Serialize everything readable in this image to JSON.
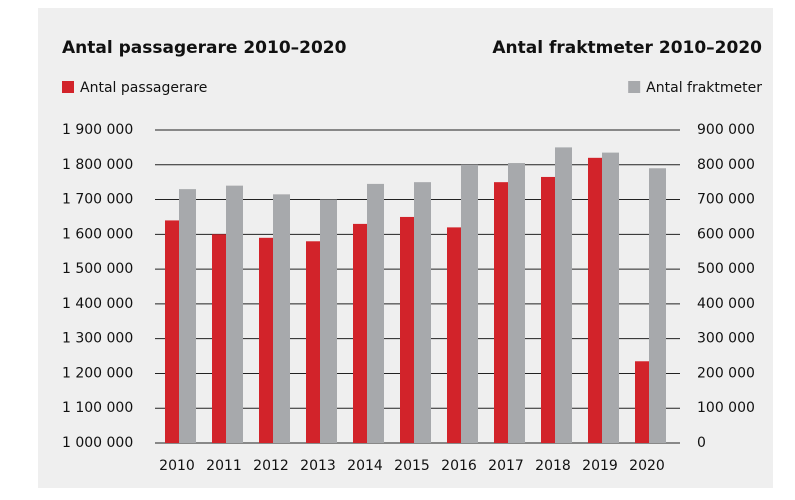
{
  "chart_data": {
    "type": "bar",
    "titles": [
      "Antal passagerare 2010–2020",
      "Antal fraktmeter 2010–2020"
    ],
    "categories": [
      "2010",
      "2011",
      "2012",
      "2013",
      "2014",
      "2015",
      "2016",
      "2017",
      "2018",
      "2019",
      "2020"
    ],
    "series": [
      {
        "name": "Antal passagerare",
        "color": "#d2232a",
        "axis": "y",
        "values": [
          1640000,
          1600000,
          1590000,
          1580000,
          1630000,
          1650000,
          1620000,
          1750000,
          1765000,
          1820000,
          1235000
        ]
      },
      {
        "name": "Antal fraktmeter",
        "color": "#a7a9ac",
        "axis": "y2",
        "values": [
          730000,
          740000,
          715000,
          700000,
          745000,
          750000,
          800000,
          805000,
          850000,
          835000,
          790000
        ]
      }
    ],
    "ylim": [
      1000000,
      1900000
    ],
    "yticks": [
      {
        "value": 1000000,
        "label": "1 000 000"
      },
      {
        "value": 1100000,
        "label": "1 100 000"
      },
      {
        "value": 1200000,
        "label": "1 200 000"
      },
      {
        "value": 1300000,
        "label": "1 300 000"
      },
      {
        "value": 1400000,
        "label": "1 400 000"
      },
      {
        "value": 1500000,
        "label": "1 500 000"
      },
      {
        "value": 1600000,
        "label": "1 600 000"
      },
      {
        "value": 1700000,
        "label": "1 700 000"
      },
      {
        "value": 1800000,
        "label": "1 800 000"
      },
      {
        "value": 1900000,
        "label": "1 900 000"
      }
    ],
    "y2lim": [
      0,
      900000
    ],
    "y2ticks": [
      0,
      {
        "value": 100000,
        "label": "100 000"
      },
      {
        "value": 200000,
        "label": "200 000"
      },
      {
        "value": 300000,
        "label": "300 000"
      },
      {
        "value": 400000,
        "label": "400 000"
      },
      {
        "value": 500000,
        "label": "500 000"
      },
      {
        "value": 600000,
        "label": "600 000"
      },
      {
        "value": 700000,
        "label": "700 000"
      },
      {
        "value": 800000,
        "label": "800 000"
      },
      {
        "value": 900000,
        "label": "900 000"
      }
    ],
    "grid": true
  }
}
